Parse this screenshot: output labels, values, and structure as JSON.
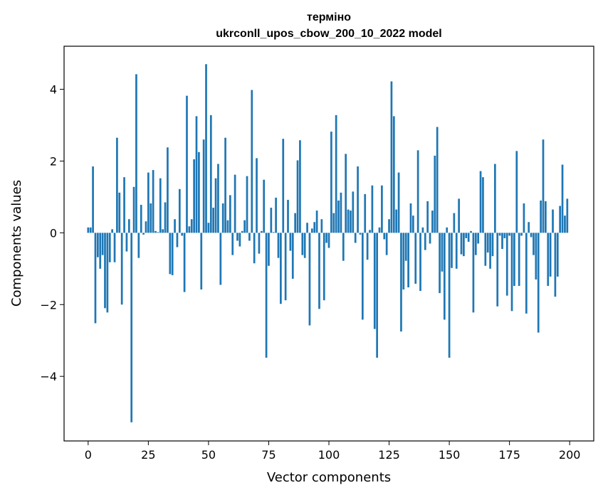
{
  "chart_data": {
    "type": "bar",
    "title_line1": "терміно",
    "title_line2": "ukrconll_upos_cbow_200_10_2022 model",
    "xlabel": "Vector components",
    "ylabel": "Components values",
    "xlim": [
      -10,
      210
    ],
    "ylim": [
      -5.8,
      5.2
    ],
    "xticks": [
      0,
      25,
      50,
      75,
      100,
      125,
      150,
      175,
      200
    ],
    "yticks": [
      -4,
      -2,
      0,
      2,
      4
    ],
    "ytick_labels": [
      "−4",
      "−2",
      "0",
      "2",
      "4"
    ],
    "bar_color": "#1f77b4",
    "values": [
      0.15,
      0.15,
      1.85,
      -2.52,
      -0.68,
      -1.0,
      -0.62,
      -2.1,
      -2.22,
      -0.82,
      0.1,
      -0.82,
      2.65,
      1.12,
      -2.0,
      1.55,
      -0.52,
      0.38,
      -5.28,
      1.28,
      4.42,
      -0.7,
      0.78,
      -0.05,
      0.32,
      1.68,
      0.82,
      1.75,
      0.05,
      0.02,
      1.52,
      0.1,
      0.85,
      2.38,
      -1.15,
      -1.18,
      0.38,
      -0.4,
      1.22,
      -0.08,
      -1.65,
      3.82,
      0.18,
      0.38,
      2.05,
      3.25,
      2.25,
      -1.58,
      2.6,
      4.7,
      0.28,
      3.28,
      0.7,
      1.52,
      1.92,
      -1.45,
      0.82,
      2.65,
      0.35,
      1.05,
      -0.62,
      1.62,
      -0.22,
      -0.38,
      0.05,
      0.35,
      1.58,
      -0.22,
      3.98,
      -0.85,
      2.08,
      -0.58,
      0.05,
      1.48,
      -3.48,
      -0.92,
      0.7,
      0.02,
      0.98,
      -0.7,
      -1.98,
      2.62,
      -1.88,
      0.92,
      -0.5,
      -1.28,
      0.55,
      2.02,
      2.58,
      -0.62,
      -0.7,
      0.28,
      -2.58,
      0.12,
      0.3,
      0.62,
      -2.12,
      0.38,
      -1.88,
      -0.28,
      -0.42,
      2.82,
      0.55,
      3.28,
      0.9,
      1.12,
      -0.78,
      2.2,
      0.65,
      0.62,
      1.15,
      -0.28,
      1.85,
      -0.05,
      -2.42,
      1.08,
      -0.75,
      0.08,
      1.32,
      -2.68,
      -3.48,
      0.15,
      1.32,
      -0.18,
      -0.62,
      0.38,
      4.22,
      3.25,
      0.65,
      1.68,
      -2.75,
      -1.58,
      -0.78,
      -1.52,
      0.82,
      0.48,
      -1.42,
      2.3,
      -1.62,
      0.15,
      -0.48,
      0.88,
      -0.3,
      0.62,
      2.15,
      2.95,
      -1.68,
      -1.08,
      -2.42,
      0.15,
      -3.48,
      -0.98,
      0.55,
      -1.0,
      0.95,
      -0.6,
      -0.65,
      -0.15,
      -0.25,
      0.05,
      -2.22,
      -0.62,
      -0.3,
      1.72,
      1.55,
      -0.92,
      -0.55,
      -1.0,
      -0.65,
      1.92,
      -2.05,
      -0.08,
      -0.45,
      -0.15,
      -1.75,
      -0.08,
      -2.18,
      -1.48,
      2.28,
      -1.48,
      -0.08,
      0.82,
      -2.25,
      0.3,
      -0.12,
      -0.62,
      -1.3,
      -2.78,
      0.9,
      2.6,
      0.88,
      -1.48,
      -1.22,
      0.65,
      -1.78,
      -1.22,
      0.75,
      1.9,
      0.48,
      0.95
    ]
  }
}
